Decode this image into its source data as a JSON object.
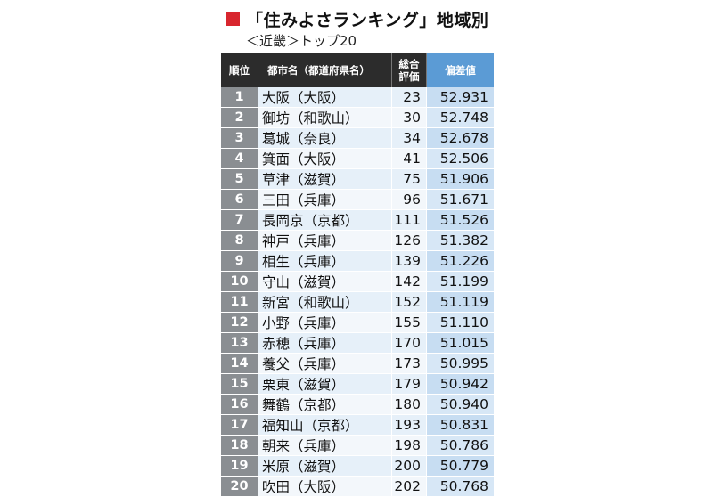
{
  "title": "「住みよさランキング」地域別",
  "subtitle": "＜近畿＞トップ20",
  "headers": {
    "rank": "順位",
    "city": "都市名（都道府県名）",
    "total_line1": "総合",
    "total_line2": "評価",
    "score": "偏差値"
  },
  "rows": [
    {
      "rank": "1",
      "city": "大阪（大阪）",
      "total": "23",
      "score": "52.931"
    },
    {
      "rank": "2",
      "city": "御坊（和歌山）",
      "total": "30",
      "score": "52.748"
    },
    {
      "rank": "3",
      "city": "葛城（奈良）",
      "total": "34",
      "score": "52.678"
    },
    {
      "rank": "4",
      "city": "箕面（大阪）",
      "total": "41",
      "score": "52.506"
    },
    {
      "rank": "5",
      "city": "草津（滋賀）",
      "total": "75",
      "score": "51.906"
    },
    {
      "rank": "6",
      "city": "三田（兵庫）",
      "total": "96",
      "score": "51.671"
    },
    {
      "rank": "7",
      "city": "長岡京（京都）",
      "total": "111",
      "score": "51.526"
    },
    {
      "rank": "8",
      "city": "神戸（兵庫）",
      "total": "126",
      "score": "51.382"
    },
    {
      "rank": "9",
      "city": "相生（兵庫）",
      "total": "139",
      "score": "51.226"
    },
    {
      "rank": "10",
      "city": "守山（滋賀）",
      "total": "142",
      "score": "51.199"
    },
    {
      "rank": "11",
      "city": "新宮（和歌山）",
      "total": "152",
      "score": "51.119"
    },
    {
      "rank": "12",
      "city": "小野（兵庫）",
      "total": "155",
      "score": "51.110"
    },
    {
      "rank": "13",
      "city": "赤穂（兵庫）",
      "total": "170",
      "score": "51.015"
    },
    {
      "rank": "14",
      "city": "養父（兵庫）",
      "total": "173",
      "score": "50.995"
    },
    {
      "rank": "15",
      "city": "栗東（滋賀）",
      "total": "179",
      "score": "50.942"
    },
    {
      "rank": "16",
      "city": "舞鶴（京都）",
      "total": "180",
      "score": "50.940"
    },
    {
      "rank": "17",
      "city": "福知山（京都）",
      "total": "193",
      "score": "50.831"
    },
    {
      "rank": "18",
      "city": "朝来（兵庫）",
      "total": "198",
      "score": "50.786"
    },
    {
      "rank": "19",
      "city": "米原（滋賀）",
      "total": "200",
      "score": "50.779"
    },
    {
      "rank": "20",
      "city": "吹田（大阪）",
      "total": "202",
      "score": "50.768"
    }
  ],
  "colors": {
    "accent_square": "#d8262e",
    "header_dark": "#2c2c2c",
    "header_score": "#5b9bd5",
    "rank_cell": "#8a8e92",
    "row_light": "#e6f0f9",
    "score_cell": "#c7ddf2"
  }
}
